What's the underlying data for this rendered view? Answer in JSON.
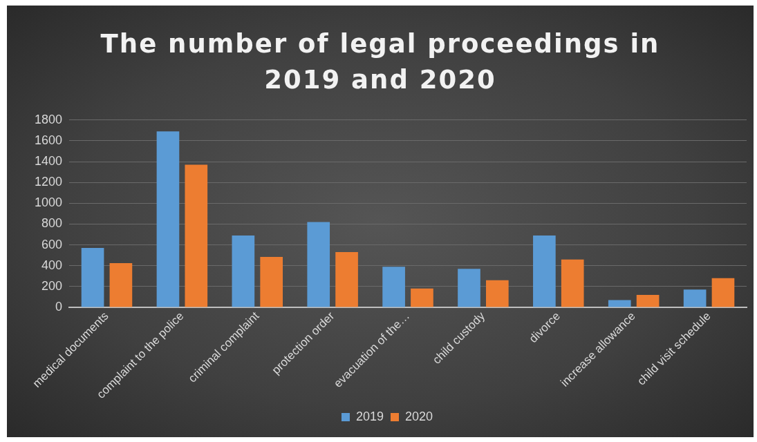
{
  "chart_data": {
    "type": "bar",
    "title": "The number of legal proceedings in 2019 and 2020",
    "categories": [
      "medical documents",
      "complaint to the police",
      "criminal complaint",
      "protection order",
      "evacuation of the…",
      "child custody",
      "divorce",
      "increase allowance",
      "child visit schedule"
    ],
    "series": [
      {
        "name": "2019",
        "color": "#5b9bd5",
        "values": [
          570,
          1690,
          690,
          820,
          390,
          370,
          690,
          70,
          170
        ]
      },
      {
        "name": "2020",
        "color": "#ed7d31",
        "values": [
          425,
          1370,
          485,
          530,
          180,
          260,
          460,
          120,
          280
        ]
      }
    ],
    "ylim": [
      0,
      1800
    ],
    "yticks": [
      0,
      200,
      400,
      600,
      800,
      1000,
      1200,
      1400,
      1600,
      1800
    ],
    "grid": "y",
    "legend": "bottom"
  }
}
